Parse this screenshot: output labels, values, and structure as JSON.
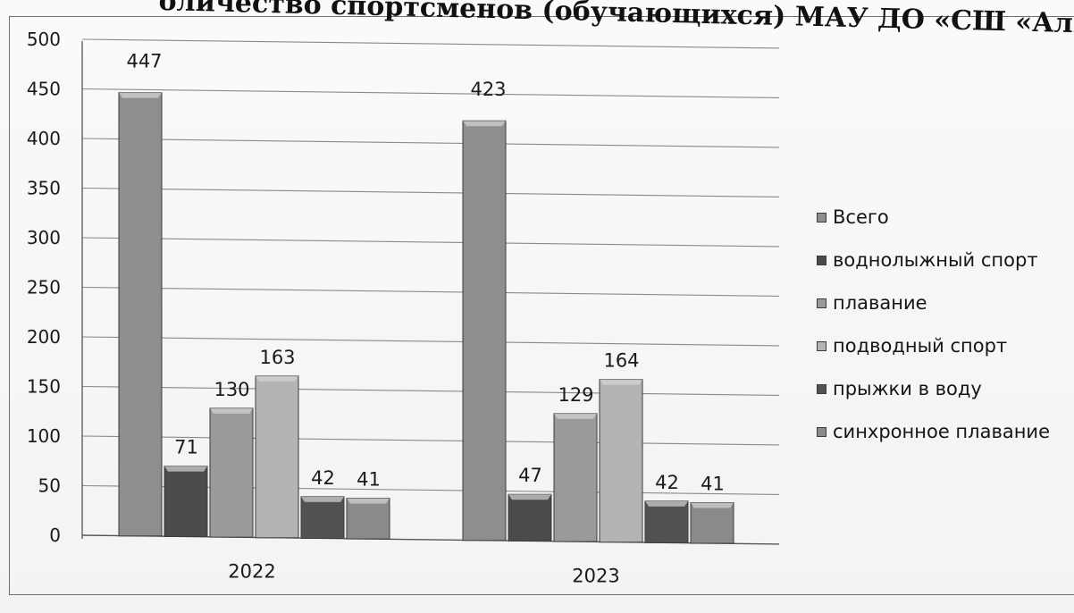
{
  "chart_data": {
    "type": "bar",
    "title": "оличество спортсменов (обучающихся)  МАУ ДО «СШ «Альбатрос",
    "categories": [
      "2022",
      "2023"
    ],
    "series": [
      {
        "name": "Всего",
        "values": [
          447,
          423
        ],
        "color": "#8e8e8e"
      },
      {
        "name": "воднолыжный спорт",
        "values": [
          71,
          47
        ],
        "color": "#4b4b4b"
      },
      {
        "name": "плавание",
        "values": [
          130,
          129
        ],
        "color": "#9a9a9a"
      },
      {
        "name": "подводный спорт",
        "values": [
          163,
          164
        ],
        "color": "#b4b4b4"
      },
      {
        "name": "прыжки в воду",
        "values": [
          42,
          42
        ],
        "color": "#525252"
      },
      {
        "name": "синхронное плавание",
        "values": [
          41,
          41
        ],
        "color": "#8a8a8a"
      }
    ],
    "y_ticks": [
      "0",
      "50",
      "100",
      "150",
      "200",
      "250",
      "300",
      "350",
      "400",
      "450",
      "500"
    ],
    "ylim": [
      0,
      500
    ],
    "grid": true,
    "legend_position": "right"
  }
}
